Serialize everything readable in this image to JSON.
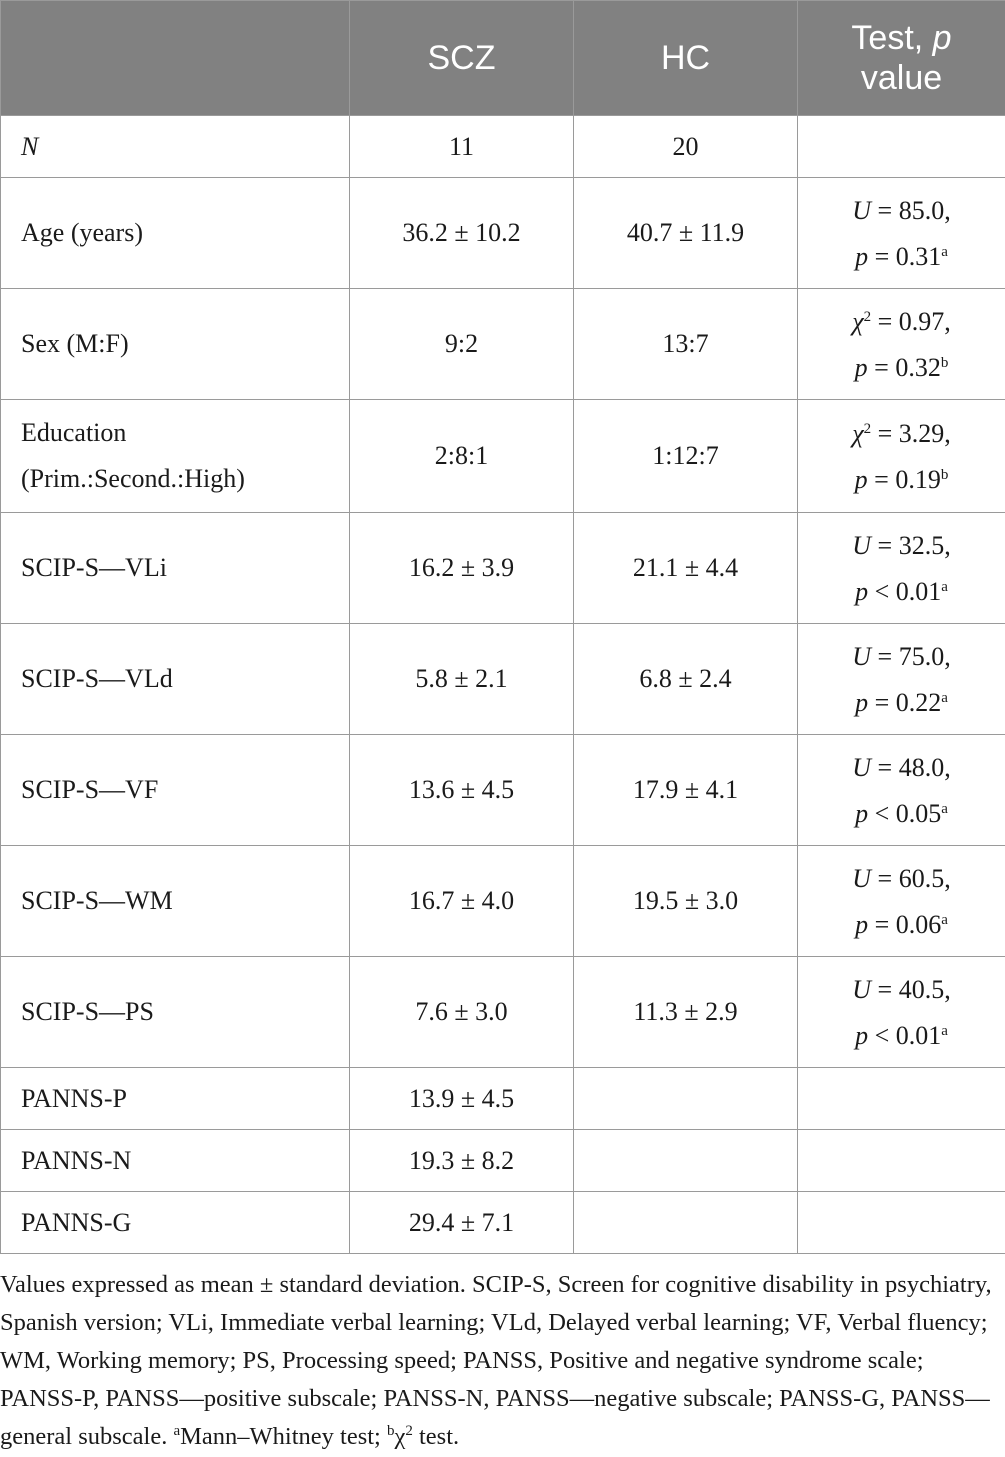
{
  "header": {
    "col1": "",
    "col2": "SCZ",
    "col3": "HC",
    "col4_line1": "Test, ",
    "col4_p": "p",
    "col4_line2": "value"
  },
  "rows": [
    {
      "label": "N",
      "scz": "11",
      "hc": "20",
      "stat": "",
      "stat_val": "",
      "p_op": "",
      "p_val": "",
      "sup": ""
    },
    {
      "label": "Age (years)",
      "scz": "36.2 ± 10.2",
      "hc": "40.7 ± 11.9",
      "stat": "U",
      "stat_val": " = 85.0,",
      "p_op": " = 0.31",
      "sup": "a"
    },
    {
      "label": "Sex (M:F)",
      "scz": "9:2",
      "hc": "13:7",
      "stat": "χ",
      "stat_sup": "2",
      "stat_val": " = 0.97,",
      "p_op": " = 0.32",
      "sup": "b"
    },
    {
      "label_line1": "Education",
      "label_line2": "(Prim.:Second.:High)",
      "scz": "2:8:1",
      "hc": "1:12:7",
      "stat": "χ",
      "stat_sup": "2",
      "stat_val": " = 3.29,",
      "p_op": " = 0.19",
      "sup": "b"
    },
    {
      "label": "SCIP-S—VLi",
      "scz": "16.2 ± 3.9",
      "hc": "21.1 ± 4.4",
      "stat": "U",
      "stat_val": " = 32.5,",
      "p_op": " < 0.01",
      "sup": "a"
    },
    {
      "label": "SCIP-S—VLd",
      "scz": "5.8 ± 2.1",
      "hc": "6.8 ± 2.4",
      "stat": "U",
      "stat_val": " = 75.0,",
      "p_op": " = 0.22",
      "sup": "a"
    },
    {
      "label": "SCIP-S—VF",
      "scz": "13.6 ± 4.5",
      "hc": "17.9 ± 4.1",
      "stat": "U",
      "stat_val": " = 48.0,",
      "p_op": " < 0.05",
      "sup": "a"
    },
    {
      "label": "SCIP-S—WM",
      "scz": "16.7 ± 4.0",
      "hc": "19.5 ± 3.0",
      "stat": "U",
      "stat_val": " = 60.5,",
      "p_op": " = 0.06",
      "sup": "a"
    },
    {
      "label": "SCIP-S—PS",
      "scz": "7.6 ± 3.0",
      "hc": "11.3 ± 2.9",
      "stat": "U",
      "stat_val": " = 40.5,",
      "p_op": " < 0.01",
      "sup": "a"
    },
    {
      "label": "PANNS-P",
      "scz": "13.9 ± 4.5",
      "hc": "",
      "stat": ""
    },
    {
      "label": "PANNS-N",
      "scz": "19.3 ± 8.2",
      "hc": "",
      "stat": ""
    },
    {
      "label": "PANNS-G",
      "scz": "29.4 ± 7.1",
      "hc": "",
      "stat": ""
    }
  ],
  "footnote": {
    "main": "Values expressed as mean ± standard deviation. SCIP-S, Screen for cognitive disability in psychiatry, Spanish version; VLi, Immediate verbal learning; VLd, Delayed verbal learning; VF, Verbal fluency; WM, Working memory; PS, Processing speed; PANSS, Positive and negative syndrome scale; PANSS-P, PANSS—positive subscale; PANSS-N, PANSS—negative subscale; PANSS-G, PANSS—general subscale. ",
    "sup_a": "a",
    "a_text": "Mann–Whitney test; ",
    "sup_b": "b",
    "chi": "χ",
    "chi_sup": "2",
    "b_text": " test."
  }
}
